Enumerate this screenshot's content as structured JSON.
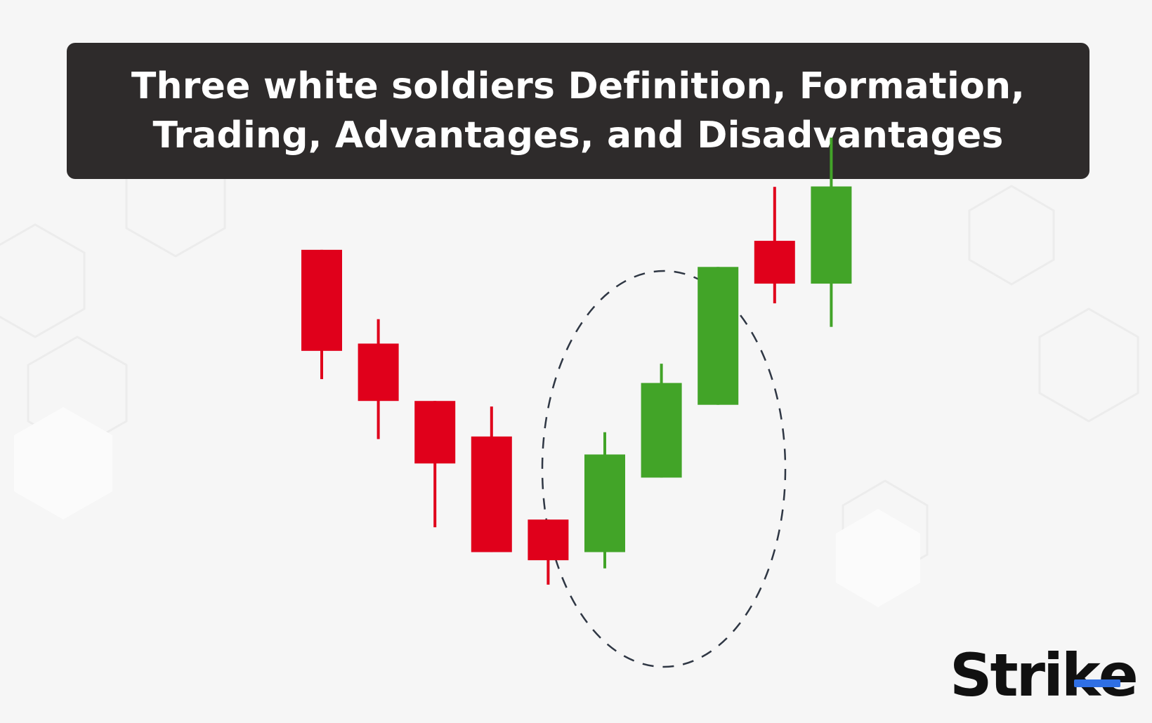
{
  "header": {
    "title_line1": "Three white soldiers Definition, Formation,",
    "title_line2": "Trading, Advantages, and Disadvantages"
  },
  "logo": {
    "text_before": "Stri",
    "text_k": "k",
    "text_after": "e",
    "accent": "#2f6fe4"
  },
  "colors": {
    "bearish": "#e0001b",
    "bullish": "#42a428",
    "highlight_ellipse": "#2f3744",
    "title_bg": "#2e2b2b"
  },
  "chart_data": {
    "type": "candlestick",
    "title": "",
    "xlabel": "",
    "ylabel": "",
    "ylim": [
      0,
      100
    ],
    "grid": false,
    "candles": [
      {
        "open": 89.2,
        "close": 65.6,
        "high": 89.2,
        "low": 59.0,
        "direction": "bearish"
      },
      {
        "open": 67.3,
        "close": 53.9,
        "high": 73.0,
        "low": 45.0,
        "direction": "bearish"
      },
      {
        "open": 53.9,
        "close": 39.3,
        "high": 53.9,
        "low": 24.4,
        "direction": "bearish"
      },
      {
        "open": 45.6,
        "close": 18.6,
        "high": 52.6,
        "low": 18.6,
        "direction": "bearish"
      },
      {
        "open": 26.2,
        "close": 16.7,
        "high": 26.2,
        "low": 11.0,
        "direction": "bearish"
      },
      {
        "open": 18.6,
        "close": 41.4,
        "high": 46.6,
        "low": 14.8,
        "direction": "bullish"
      },
      {
        "open": 36.0,
        "close": 58.1,
        "high": 62.6,
        "low": 36.0,
        "direction": "bullish"
      },
      {
        "open": 53.0,
        "close": 85.2,
        "high": 85.2,
        "low": 53.0,
        "direction": "bullish"
      },
      {
        "open": 91.3,
        "close": 81.3,
        "high": 103.9,
        "low": 76.7,
        "direction": "bearish"
      },
      {
        "open": 81.3,
        "close": 104.0,
        "high": 115.4,
        "low": 71.2,
        "direction": "bullish"
      }
    ],
    "highlight": {
      "shape": "dashed-ellipse",
      "from_candle": 4,
      "to_candle": 7
    }
  }
}
